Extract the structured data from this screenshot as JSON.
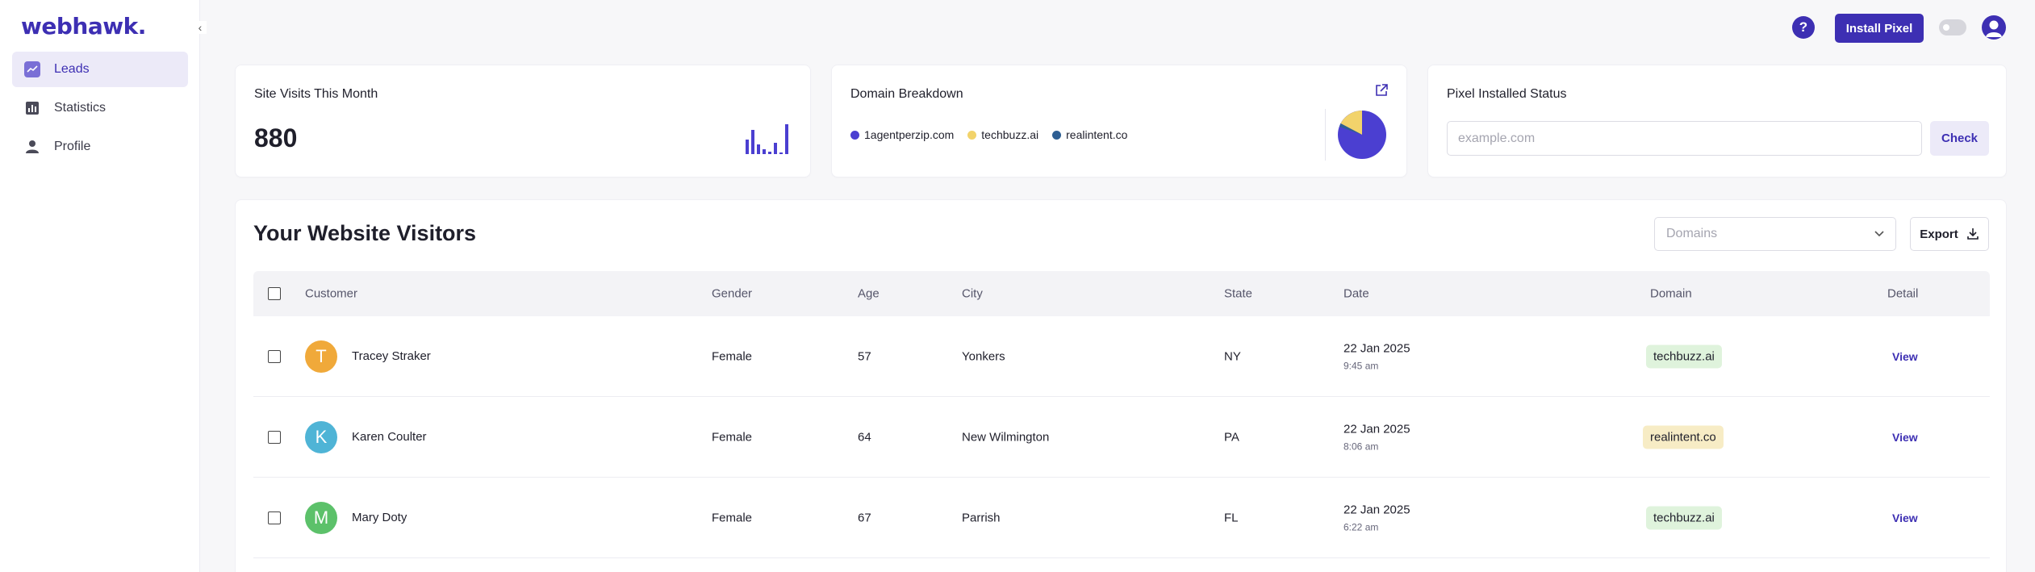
{
  "app": {
    "logo": "webhawk."
  },
  "sidebar": {
    "items": [
      {
        "label": "Leads",
        "icon": "chart-icon",
        "active": true
      },
      {
        "label": "Statistics",
        "icon": "bar-chart-icon",
        "active": false
      },
      {
        "label": "Profile",
        "icon": "person-icon",
        "active": false
      }
    ]
  },
  "topbar": {
    "help_label": "?",
    "install_label": "Install Pixel"
  },
  "cards": {
    "visits": {
      "title": "Site Visits This Month",
      "value": "880"
    },
    "domain_breakdown": {
      "title": "Domain Breakdown",
      "legend": [
        {
          "label": "1agentperzip.com",
          "color": "#4b3fd1"
        },
        {
          "label": "techbuzz.ai",
          "color": "#f2d36b"
        },
        {
          "label": "realintent.co",
          "color": "#2e5f93"
        }
      ]
    },
    "pixel_status": {
      "title": "Pixel Installed Status",
      "placeholder": "example.com",
      "check_label": "Check"
    }
  },
  "visitors": {
    "title": "Your Website Visitors",
    "domains_placeholder": "Domains",
    "export_label": "Export",
    "columns": [
      "Customer",
      "Gender",
      "Age",
      "City",
      "State",
      "Date",
      "Domain",
      "Detail"
    ],
    "rows": [
      {
        "initial": "T",
        "initial_color": "#f0a93a",
        "name": "Tracey Straker",
        "gender": "Female",
        "age": "57",
        "city": "Yonkers",
        "state": "NY",
        "date": "22 Jan 2025",
        "time": "9:45 am",
        "domain": "techbuzz.ai",
        "domain_bg": "#dff3dc",
        "view": "View"
      },
      {
        "initial": "K",
        "initial_color": "#4fb4d6",
        "name": "Karen Coulter",
        "gender": "Female",
        "age": "64",
        "city": "New Wilmington",
        "state": "PA",
        "date": "22 Jan 2025",
        "time": "8:06 am",
        "domain": "realintent.co",
        "domain_bg": "#f7ecc5",
        "view": "View"
      },
      {
        "initial": "M",
        "initial_color": "#5cc16a",
        "name": "Mary Doty",
        "gender": "Female",
        "age": "67",
        "city": "Parrish",
        "state": "FL",
        "date": "22 Jan 2025",
        "time": "6:22 am",
        "domain": "techbuzz.ai",
        "domain_bg": "#dff3dc",
        "view": "View"
      }
    ]
  },
  "colors": {
    "brand": "#3d2fb3",
    "brand_light": "#eceaf8"
  }
}
